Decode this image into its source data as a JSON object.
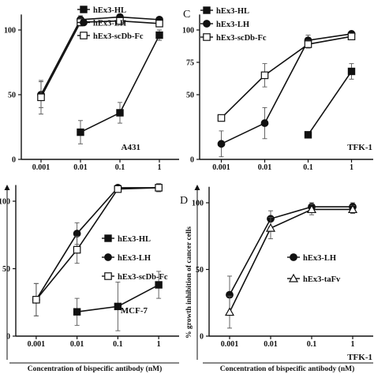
{
  "chart_data": [
    {
      "panel": "",
      "type": "line",
      "cell_line": "A431",
      "xscale": "log",
      "x": [
        0.001,
        0.01,
        0.1,
        1
      ],
      "x_tick_labels": [
        "0.001",
        "0.01",
        "0.1",
        "1"
      ],
      "ylim": [
        0,
        100
      ],
      "y_tick_labels": [
        "0",
        "50",
        "100"
      ],
      "xlabel": "",
      "ylabel": "",
      "legend": "left",
      "series": [
        {
          "name": "hEx3-HL",
          "marker": "filled-square",
          "values": [
            null,
            21,
            36,
            96
          ],
          "err": [
            null,
            9,
            8,
            4
          ]
        },
        {
          "name": "hEx3-LH",
          "marker": "filled-circle",
          "values": [
            50,
            108,
            110,
            108
          ],
          "err": [
            10,
            3,
            2,
            2
          ]
        },
        {
          "name": "hEx3-scDb-Fc",
          "marker": "open-square",
          "values": [
            48,
            106,
            107,
            105
          ],
          "err": [
            13,
            3,
            2,
            2
          ]
        }
      ]
    },
    {
      "panel": "C",
      "type": "line",
      "cell_line": "TFK-1",
      "xscale": "log",
      "x": [
        0.001,
        0.01,
        0.1,
        1
      ],
      "x_tick_labels": [
        "0.001",
        "0.01",
        "0.1",
        "1"
      ],
      "ylim": [
        0,
        100
      ],
      "y_tick_labels": [
        "0",
        "50",
        "75",
        "100"
      ],
      "xlabel": "",
      "ylabel": "",
      "legend": "top-left",
      "series": [
        {
          "name": "hEx3-HL",
          "marker": "filled-square",
          "values": [
            null,
            null,
            19,
            68
          ],
          "err": [
            null,
            null,
            0,
            6
          ]
        },
        {
          "name": "hEx3-LH",
          "marker": "filled-circle",
          "values": [
            12,
            28,
            92,
            97
          ],
          "err": [
            10,
            12,
            4,
            2
          ]
        },
        {
          "name": "hEx3-scDb-Fc",
          "marker": "open-square",
          "values": [
            32,
            65,
            89,
            95
          ],
          "err": [
            2,
            9,
            3,
            2
          ]
        }
      ]
    },
    {
      "panel": "",
      "type": "line",
      "cell_line": "MCF-7",
      "xscale": "log",
      "x": [
        0.001,
        0.01,
        0.1,
        1
      ],
      "x_tick_labels": [
        "0.001",
        "0.01",
        "0.1",
        "1"
      ],
      "ylim": [
        0,
        100
      ],
      "y_tick_labels": [
        "0",
        "50",
        "100"
      ],
      "xlabel": "Concentration of bispecific antibody (nM)",
      "ylabel": "",
      "legend": "right",
      "series": [
        {
          "name": "hEx3-HL",
          "marker": "filled-square",
          "values": [
            null,
            18,
            22,
            38
          ],
          "err": [
            null,
            10,
            18,
            10
          ]
        },
        {
          "name": "hEx3-LH",
          "marker": "filled-circle",
          "values": [
            27,
            76,
            110,
            110
          ],
          "err": [
            12,
            8,
            2,
            3
          ]
        },
        {
          "name": "hEx3-scDb-Fc",
          "marker": "open-square",
          "values": [
            27,
            64,
            109,
            110
          ],
          "err": [
            12,
            10,
            2,
            3
          ]
        }
      ]
    },
    {
      "panel": "D",
      "type": "line",
      "cell_line": "TFK-1",
      "xscale": "log",
      "x": [
        0.001,
        0.01,
        0.1,
        1
      ],
      "x_tick_labels": [
        "0.001",
        "0.01",
        "0.1",
        "1"
      ],
      "ylim": [
        0,
        100
      ],
      "y_tick_labels": [
        "0",
        "50",
        "100"
      ],
      "xlabel": "Concentration of bispecific antibody (nM)",
      "ylabel": "% growth inhibition of cancer cells",
      "legend": "center-right",
      "series": [
        {
          "name": "hEx3-LH",
          "marker": "filled-circle",
          "values": [
            31,
            88,
            97,
            97
          ],
          "err": [
            14,
            6,
            3,
            3
          ]
        },
        {
          "name": "hEx3-taFv",
          "marker": "open-triangle",
          "values": [
            18,
            81,
            95,
            95
          ],
          "err": [
            12,
            8,
            4,
            3
          ]
        }
      ]
    }
  ]
}
